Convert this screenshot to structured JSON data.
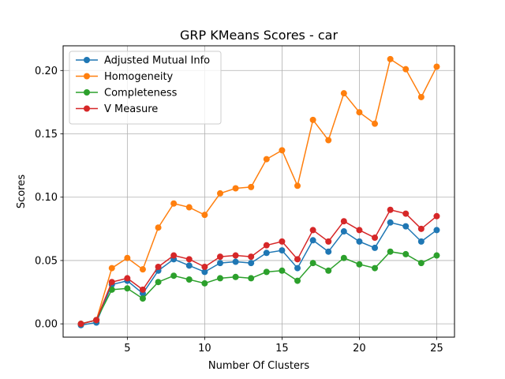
{
  "chart_data": {
    "type": "line",
    "title": "GRP KMeans Scores - car",
    "xlabel": "Number Of Clusters",
    "ylabel": "Scores",
    "xlim": [
      0.85,
      26.15
    ],
    "ylim": [
      -0.0105,
      0.2195
    ],
    "x_ticks": [
      5,
      10,
      15,
      20,
      25
    ],
    "y_ticks": [
      0.0,
      0.05,
      0.1,
      0.15,
      0.2
    ],
    "y_tick_labels": [
      "0.00",
      "0.05",
      "0.10",
      "0.15",
      "0.20"
    ],
    "grid": true,
    "legend_position": "top-left",
    "x": [
      2,
      3,
      4,
      5,
      6,
      7,
      8,
      9,
      10,
      11,
      12,
      13,
      14,
      15,
      16,
      17,
      18,
      19,
      20,
      21,
      22,
      23,
      24,
      25
    ],
    "series": [
      {
        "name": "Adjusted Mutual Info",
        "color": "#1f77b4",
        "values": [
          -0.001,
          0.001,
          0.031,
          0.034,
          0.024,
          0.042,
          0.051,
          0.046,
          0.041,
          0.048,
          0.049,
          0.048,
          0.056,
          0.058,
          0.044,
          0.066,
          0.057,
          0.073,
          0.065,
          0.06,
          0.08,
          0.077,
          0.065,
          0.074
        ]
      },
      {
        "name": "Homogeneity",
        "color": "#ff7f0e",
        "values": [
          0.0,
          0.003,
          0.044,
          0.052,
          0.043,
          0.076,
          0.095,
          0.092,
          0.086,
          0.103,
          0.107,
          0.108,
          0.13,
          0.137,
          0.109,
          0.161,
          0.145,
          0.182,
          0.167,
          0.158,
          0.209,
          0.201,
          0.179,
          0.203
        ]
      },
      {
        "name": "Completeness",
        "color": "#2ca02c",
        "values": [
          0.0,
          0.003,
          0.027,
          0.028,
          0.02,
          0.033,
          0.038,
          0.035,
          0.032,
          0.036,
          0.037,
          0.036,
          0.041,
          0.042,
          0.034,
          0.048,
          0.042,
          0.052,
          0.047,
          0.044,
          0.057,
          0.055,
          0.048,
          0.054
        ]
      },
      {
        "name": "V Measure",
        "color": "#d62728",
        "values": [
          0.0,
          0.003,
          0.033,
          0.036,
          0.027,
          0.045,
          0.054,
          0.051,
          0.045,
          0.053,
          0.054,
          0.053,
          0.062,
          0.065,
          0.051,
          0.074,
          0.065,
          0.081,
          0.074,
          0.068,
          0.09,
          0.087,
          0.075,
          0.085
        ]
      }
    ]
  }
}
